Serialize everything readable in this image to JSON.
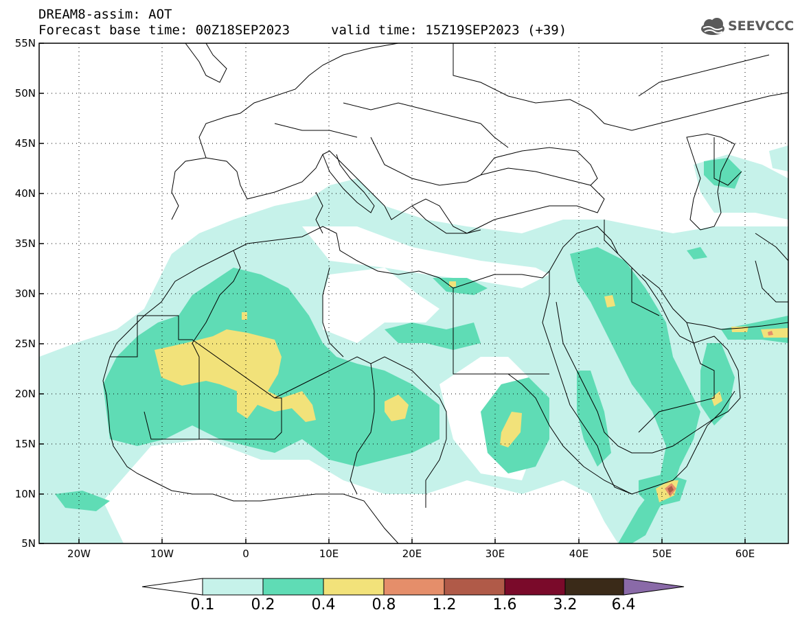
{
  "header": {
    "title_line1": "DREAM8-assim: AOT",
    "title_line2": "Forecast base time: 00Z18SEP2023",
    "valid_time": "valid time: 15Z19SEP2023 (+39)",
    "logo_text": "SEEVCCC"
  },
  "map": {
    "lat_labels": [
      "55N",
      "50N",
      "45N",
      "40N",
      "35N",
      "30N",
      "25N",
      "20N",
      "15N",
      "10N",
      "5N"
    ],
    "lon_labels": [
      "20W",
      "10W",
      "0",
      "10E",
      "20E",
      "30E",
      "40E",
      "50E",
      "60E"
    ],
    "lon_range": [
      -25,
      65
    ],
    "lat_range": [
      5,
      55
    ],
    "colors": {
      "c1": "#c6f2ea",
      "c2": "#5fdcb5",
      "c3": "#f2e27a",
      "c4": "#e58e6a",
      "c5": "#b05a48",
      "c6": "#7a0a2a",
      "c7": "#3a2a18",
      "c8": "#8a6aa8"
    }
  },
  "colorbar": {
    "labels": [
      "0.1",
      "0.2",
      "0.4",
      "0.8",
      "1.2",
      "1.6",
      "3.2",
      "6.4"
    ]
  }
}
